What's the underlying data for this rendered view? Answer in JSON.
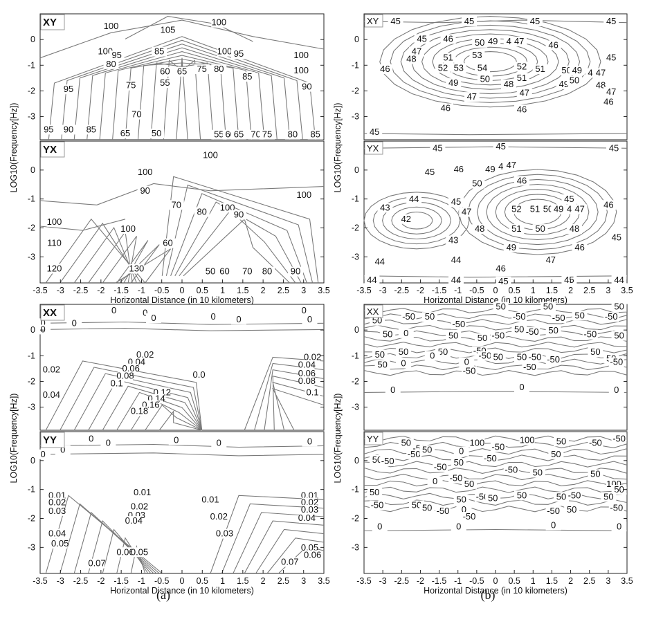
{
  "captions": {
    "left": "(a)",
    "right": "(b)"
  },
  "chart_data": [
    {
      "type": "contour",
      "figure": "(a)",
      "panels": [
        {
          "tag": "XY",
          "levels": [
            50,
            55,
            60,
            65,
            70,
            75,
            80,
            85,
            90,
            95,
            100,
            105
          ]
        },
        {
          "tag": "YX",
          "levels": [
            50,
            60,
            70,
            80,
            90,
            100,
            110,
            120,
            130
          ]
        }
      ],
      "xlabel": "Horizontal Distance (in 10 kilometers)",
      "ylabel": "LOG10(Frequency[Hz])",
      "xlim": [
        -3.5,
        3.5
      ],
      "xticks": [
        "-3.5",
        "-3",
        "-2.5",
        "-2",
        "-1.5",
        "-1",
        "-0.5",
        "0",
        "0.5",
        "1",
        "1.5",
        "2",
        "2.5",
        "3",
        "3.5"
      ],
      "yticks": [
        "0",
        "-1",
        "-2",
        "-3"
      ]
    },
    {
      "type": "contour",
      "figure": "(b)",
      "panels": [
        {
          "tag": "XY",
          "levels": [
            45,
            46,
            47,
            48,
            49,
            50,
            51,
            52,
            53,
            54
          ]
        },
        {
          "tag": "YX",
          "levels": [
            42,
            43,
            44,
            45,
            46,
            47,
            48,
            49,
            50,
            51,
            52
          ]
        }
      ],
      "xlabel": "Horizontal Distance (in 10 kilometers)",
      "ylabel": "LOG10(Frequency[Hz])",
      "xlim": [
        -3.5,
        3.5
      ],
      "xticks": [
        "-3.5",
        "-3",
        "-2.5",
        "-2",
        "-1.5",
        "-1",
        "-0.5",
        "0",
        "0.5",
        "1",
        "1.5",
        "2",
        "2.5",
        "3",
        "3.5"
      ],
      "yticks": [
        "0",
        "-1",
        "-2",
        "-3"
      ]
    },
    {
      "type": "contour",
      "figure": "(a)",
      "panels": [
        {
          "tag": "XX",
          "levels": [
            0,
            0.02,
            0.04,
            0.06,
            0.08,
            0.1,
            0.12,
            0.14,
            0.16,
            0.18
          ]
        },
        {
          "tag": "YY",
          "levels": [
            0,
            0.01,
            0.02,
            0.03,
            0.04,
            0.05,
            0.06,
            0.07
          ]
        }
      ],
      "xlabel": "Horizontal Distance (in 10 kilometers)",
      "ylabel": "LOG10(Frequency[Hz])",
      "xlim": [
        -3.5,
        3.5
      ],
      "xticks": [
        "-3.5",
        "-3",
        "-2.5",
        "-2",
        "-1.5",
        "-1",
        "-0.5",
        "0",
        "0.5",
        "1",
        "1.5",
        "2",
        "2.5",
        "3",
        "3.5"
      ],
      "yticks": [
        "0",
        "-1",
        "-2",
        "-3"
      ]
    },
    {
      "type": "contour",
      "figure": "(b)",
      "panels": [
        {
          "tag": "XX",
          "levels": [
            -50,
            0,
            50
          ]
        },
        {
          "tag": "YY",
          "levels": [
            -50,
            0,
            50,
            100
          ]
        }
      ],
      "xlabel": "Horizontal Distance (in 10 kilometers)",
      "ylabel": "LOG10(Frequency[Hz])",
      "xlim": [
        -3.5,
        3.5
      ],
      "xticks": [
        "-3.5",
        "-3",
        "-2.5",
        "-2",
        "-1.5",
        "-1",
        "-0.5",
        "0",
        "0.5",
        "1",
        "1.5",
        "2",
        "2.5",
        "3",
        "3.5"
      ],
      "yticks": [
        "0",
        "-1",
        "-2",
        "-3"
      ]
    }
  ]
}
